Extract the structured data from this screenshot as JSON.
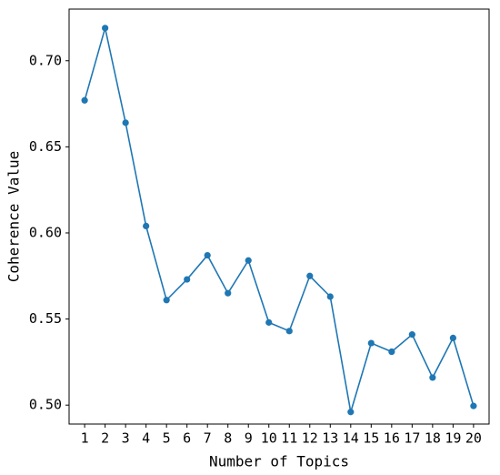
{
  "chart_data": {
    "type": "line",
    "x_label": "Number of Topics",
    "y_label": "Coherence Value",
    "x": [
      1,
      2,
      3,
      4,
      5,
      6,
      7,
      8,
      9,
      10,
      11,
      12,
      13,
      14,
      15,
      16,
      17,
      18,
      19,
      20
    ],
    "series": [
      {
        "color": "#1f77b4",
        "values": [
          0.677,
          0.719,
          0.664,
          0.604,
          0.561,
          0.573,
          0.587,
          0.565,
          0.584,
          0.548,
          0.543,
          0.575,
          0.563,
          0.496,
          0.536,
          0.531,
          0.541,
          0.516,
          0.539,
          0.4995
        ]
      }
    ],
    "xlim": [
      0.24,
      20.76
    ],
    "ylim": [
      0.489,
      0.73
    ],
    "xticks": [
      1,
      2,
      3,
      4,
      5,
      6,
      7,
      8,
      9,
      10,
      11,
      12,
      13,
      14,
      15,
      16,
      17,
      18,
      19,
      20
    ],
    "yticks": [
      {
        "value": 0.5,
        "label": "0.50"
      },
      0.55,
      {
        "value": 0.6,
        "label": "0.60"
      },
      0.65,
      {
        "value": 0.7,
        "label": "0.70"
      }
    ],
    "grid": false
  }
}
